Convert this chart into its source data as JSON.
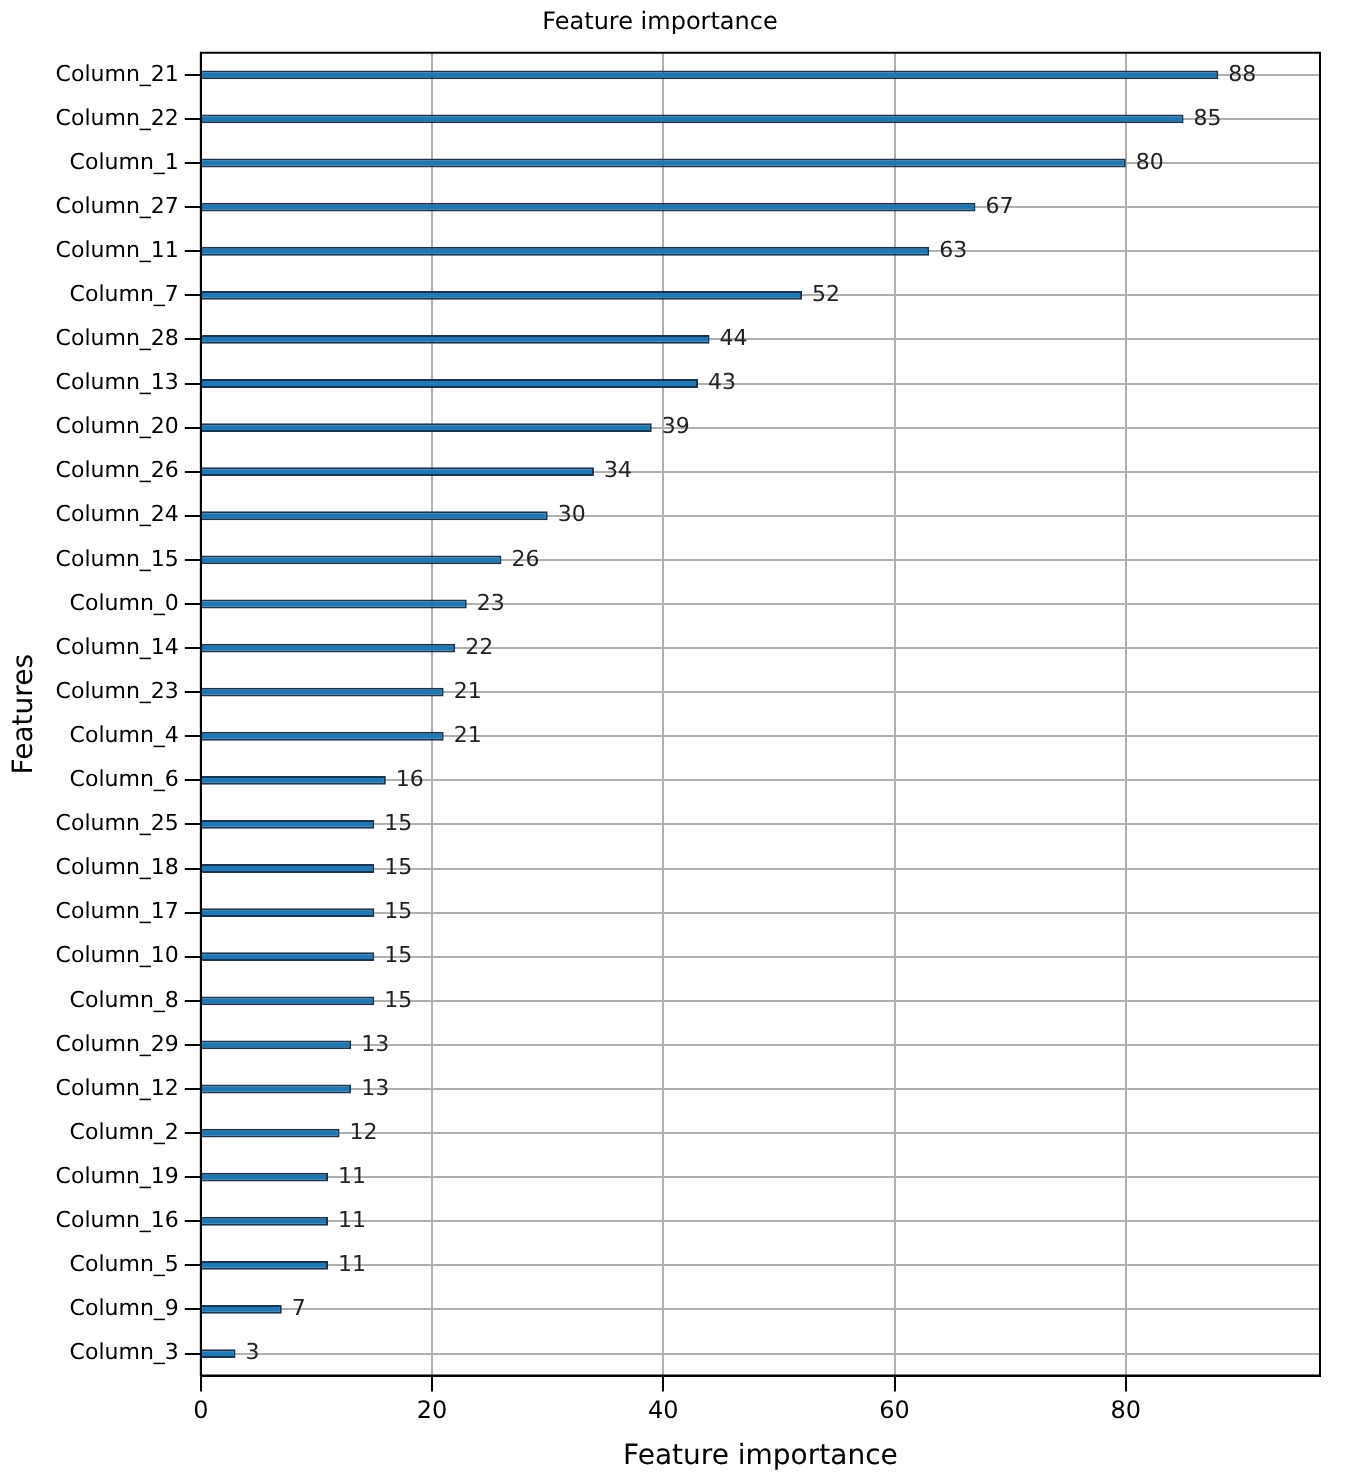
{
  "chart_data": {
    "type": "bar",
    "orientation": "horizontal",
    "title": "Feature importance",
    "xlabel": "Feature importance",
    "ylabel": "Features",
    "categories": [
      "Column_21",
      "Column_22",
      "Column_1",
      "Column_27",
      "Column_11",
      "Column_7",
      "Column_28",
      "Column_13",
      "Column_20",
      "Column_26",
      "Column_24",
      "Column_15",
      "Column_0",
      "Column_14",
      "Column_23",
      "Column_4",
      "Column_6",
      "Column_25",
      "Column_18",
      "Column_17",
      "Column_10",
      "Column_8",
      "Column_29",
      "Column_12",
      "Column_2",
      "Column_19",
      "Column_16",
      "Column_5",
      "Column_9",
      "Column_3"
    ],
    "values": [
      88,
      85,
      80,
      67,
      63,
      52,
      44,
      43,
      39,
      34,
      30,
      26,
      23,
      22,
      21,
      21,
      16,
      15,
      15,
      15,
      15,
      15,
      13,
      13,
      12,
      11,
      11,
      11,
      7,
      3
    ],
    "color": "#1f77b4",
    "xlim": [
      0,
      96.8
    ],
    "xticks": [
      0,
      20,
      40,
      60,
      80
    ],
    "grid": true,
    "data_labels": true
  }
}
